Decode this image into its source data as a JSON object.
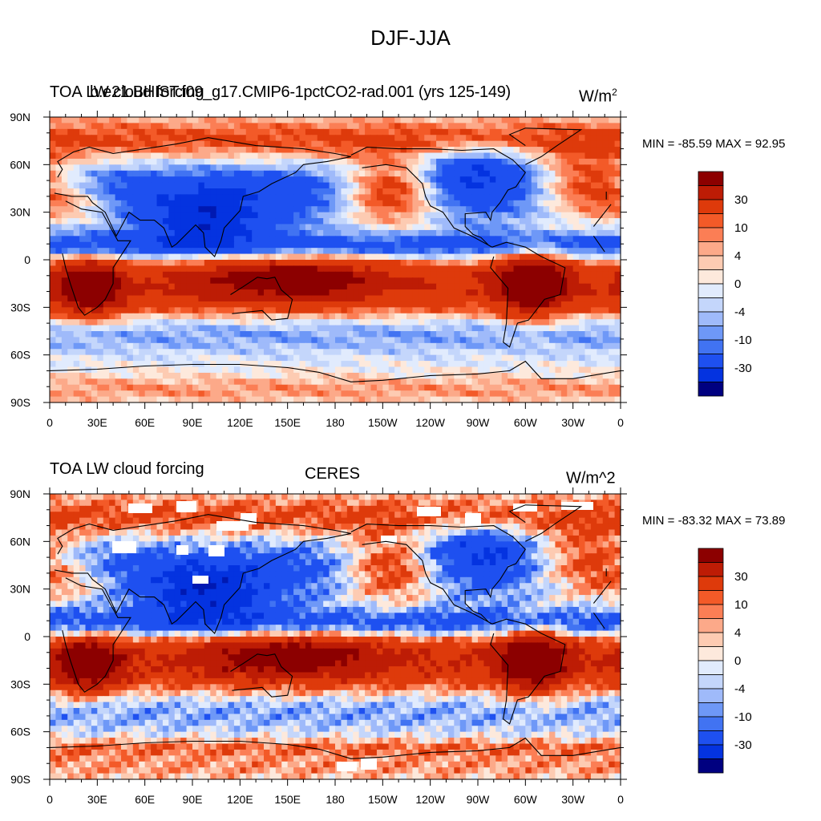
{
  "page_title": "DJF-JJA",
  "colors": {
    "negative": [
      "#000080",
      "#0019b2",
      "#0433e0",
      "#1e50f0",
      "#4173f2",
      "#6e98f7",
      "#9fbafa",
      "#c4d6fb",
      "#e1ebfd"
    ],
    "positive": [
      "#fde9dc",
      "#fdcbb2",
      "#fca989",
      "#fb7e55",
      "#f35a28",
      "#de3a0b",
      "#bd1c05",
      "#8c0000"
    ],
    "land_line": "#000000"
  },
  "panels": [
    {
      "id": "model",
      "left_label": "TOA LW cloud forcing",
      "center_label": "b.e21.BHIST.f09_g17.CMIP6-1pctCO2-rad.001 (yrs 125-149)",
      "right_label": "W/m",
      "right_label_sup": "2",
      "min_max_text": "MIN = -85.59 MAX =  92.95",
      "min": -85.59,
      "max": 92.95
    },
    {
      "id": "obs",
      "left_label": "TOA LW cloud forcing",
      "center_label": "CERES",
      "right_label": "W/m^2",
      "right_label_sup": "",
      "min_max_text": "MIN = -83.32 MAX =  73.89",
      "min": -83.32,
      "max": 73.89
    }
  ],
  "lat_ticks": [
    "90N",
    "60N",
    "30N",
    "0",
    "30S",
    "60S",
    "90S"
  ],
  "lon_ticks": [
    "0",
    "30E",
    "60E",
    "90E",
    "120E",
    "150E",
    "180",
    "150W",
    "120W",
    "90W",
    "60W",
    "30W",
    "0"
  ],
  "colorbar_labels": [
    "30",
    "10",
    "4",
    "0",
    "-4",
    "-10",
    "-30"
  ]
}
